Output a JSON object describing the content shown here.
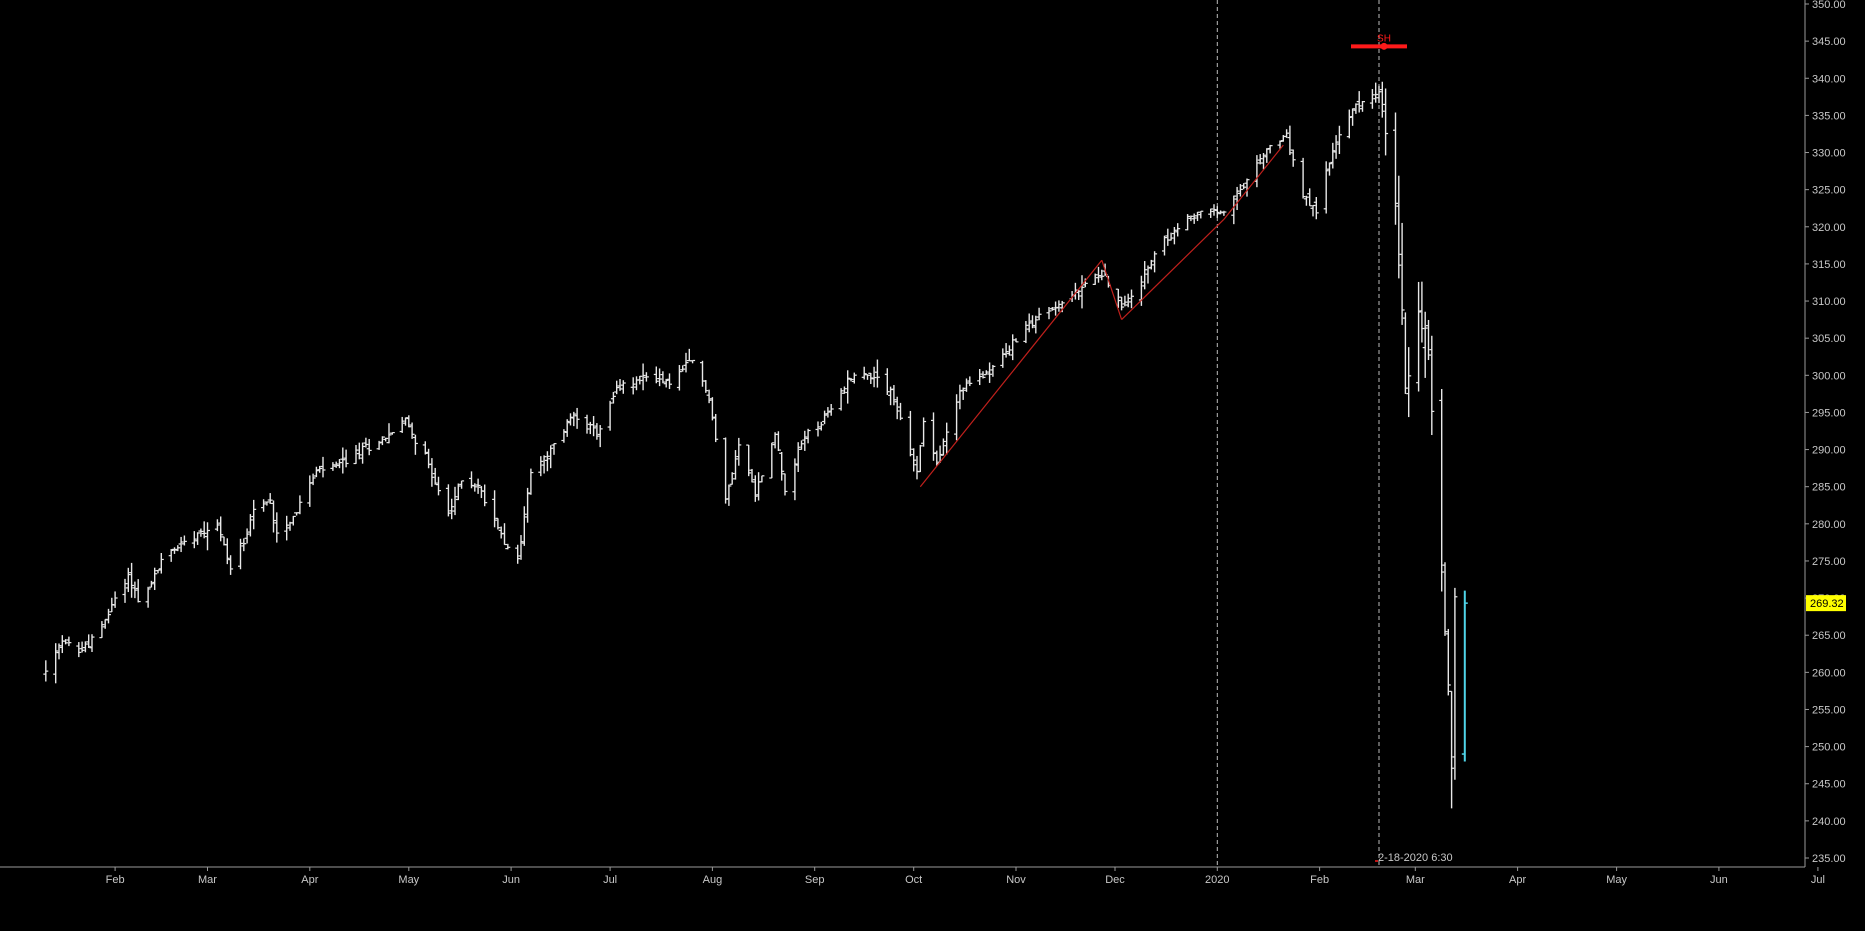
{
  "chart_data": {
    "type": "ohlc",
    "title": "",
    "xlabel": "",
    "ylabel": "",
    "ylim": [
      235,
      350
    ],
    "y_ticks": [
      "235.00",
      "240.00",
      "245.00",
      "250.00",
      "255.00",
      "260.00",
      "265.00",
      "270.00",
      "275.00",
      "280.00",
      "285.00",
      "290.00",
      "295.00",
      "300.00",
      "305.00",
      "310.00",
      "315.00",
      "320.00",
      "325.00",
      "330.00",
      "335.00",
      "340.00",
      "345.00",
      "350.00"
    ],
    "x_month_labels": [
      {
        "label": "Feb",
        "date": "2019-02-01"
      },
      {
        "label": "Mar",
        "date": "2019-03-01"
      },
      {
        "label": "Apr",
        "date": "2019-04-01"
      },
      {
        "label": "May",
        "date": "2019-05-01"
      },
      {
        "label": "Jun",
        "date": "2019-06-01"
      },
      {
        "label": "Jul",
        "date": "2019-07-01"
      },
      {
        "label": "Aug",
        "date": "2019-08-01"
      },
      {
        "label": "Sep",
        "date": "2019-09-01"
      },
      {
        "label": "Oct",
        "date": "2019-10-01"
      },
      {
        "label": "Nov",
        "date": "2019-11-01"
      },
      {
        "label": "Dec",
        "date": "2019-12-01"
      },
      {
        "label": "2020",
        "date": "2020-01-01"
      },
      {
        "label": "Feb",
        "date": "2020-02-01"
      },
      {
        "label": "Mar",
        "date": "2020-03-01"
      },
      {
        "label": "Apr",
        "date": "2020-04-01"
      },
      {
        "label": "May",
        "date": "2020-05-01"
      },
      {
        "label": "Jun",
        "date": "2020-06-01"
      },
      {
        "label": "Jul",
        "date": "2020-07-01"
      }
    ],
    "price_path": [
      [
        "2019-01-11",
        260
      ],
      [
        "2019-01-16",
        264
      ],
      [
        "2019-01-22",
        263
      ],
      [
        "2019-01-28",
        266
      ],
      [
        "2019-02-01",
        270
      ],
      [
        "2019-02-05",
        273
      ],
      [
        "2019-02-08",
        270
      ],
      [
        "2019-02-11",
        271
      ],
      [
        "2019-02-15",
        275
      ],
      [
        "2019-02-20",
        277
      ],
      [
        "2019-02-26",
        279
      ],
      [
        "2019-03-04",
        280
      ],
      [
        "2019-03-08",
        274
      ],
      [
        "2019-03-12",
        278
      ],
      [
        "2019-03-15",
        282
      ],
      [
        "2019-03-20",
        283
      ],
      [
        "2019-03-22",
        279
      ],
      [
        "2019-03-27",
        281
      ],
      [
        "2019-04-03",
        287
      ],
      [
        "2019-04-10",
        288
      ],
      [
        "2019-04-17",
        290
      ],
      [
        "2019-04-25",
        292
      ],
      [
        "2019-04-30",
        294
      ],
      [
        "2019-05-07",
        288
      ],
      [
        "2019-05-13",
        281
      ],
      [
        "2019-05-17",
        286
      ],
      [
        "2019-05-22",
        285
      ],
      [
        "2019-05-31",
        277
      ],
      [
        "2019-06-03",
        275
      ],
      [
        "2019-06-07",
        287
      ],
      [
        "2019-06-12",
        289
      ],
      [
        "2019-06-20",
        295
      ],
      [
        "2019-06-27",
        292
      ],
      [
        "2019-07-03",
        298
      ],
      [
        "2019-07-12",
        300
      ],
      [
        "2019-07-19",
        299
      ],
      [
        "2019-07-26",
        302
      ],
      [
        "2019-07-31",
        297
      ],
      [
        "2019-08-05",
        283
      ],
      [
        "2019-08-09",
        291
      ],
      [
        "2019-08-14",
        284
      ],
      [
        "2019-08-20",
        292
      ],
      [
        "2019-08-23",
        285
      ],
      [
        "2019-08-29",
        292
      ],
      [
        "2019-09-04",
        294
      ],
      [
        "2019-09-12",
        300
      ],
      [
        "2019-09-19",
        300
      ],
      [
        "2019-09-24",
        298
      ],
      [
        "2019-10-02",
        287
      ],
      [
        "2019-10-04",
        294
      ],
      [
        "2019-10-08",
        288
      ],
      [
        "2019-10-15",
        298
      ],
      [
        "2019-10-22",
        300
      ],
      [
        "2019-10-29",
        303
      ],
      [
        "2019-11-05",
        307
      ],
      [
        "2019-11-12",
        309
      ],
      [
        "2019-11-19",
        311
      ],
      [
        "2019-11-27",
        314
      ],
      [
        "2019-12-03",
        309
      ],
      [
        "2019-12-09",
        313
      ],
      [
        "2019-12-16",
        318
      ],
      [
        "2019-12-23",
        321
      ],
      [
        "2019-12-27",
        322
      ],
      [
        "2020-01-03",
        322
      ],
      [
        "2020-01-10",
        326
      ],
      [
        "2020-01-17",
        331
      ],
      [
        "2020-01-22",
        332
      ],
      [
        "2020-01-27",
        324
      ],
      [
        "2020-01-31",
        322
      ],
      [
        "2020-02-04",
        329
      ],
      [
        "2020-02-10",
        335
      ],
      [
        "2020-02-14",
        337
      ],
      [
        "2020-02-19",
        338
      ],
      [
        "2020-02-24",
        324
      ],
      [
        "2020-02-27",
        299
      ],
      [
        "2020-03-02",
        309
      ],
      [
        "2020-03-05",
        303
      ],
      [
        "2020-03-09",
        274
      ],
      [
        "2020-03-12",
        249
      ],
      [
        "2020-03-13",
        269
      ]
    ],
    "last_bar": {
      "date": "2020-03-16",
      "open": 249,
      "high": 271,
      "low": 248,
      "close": 269.32,
      "color": "#4fd4e8"
    },
    "trendlines": [
      {
        "from": [
          "2019-10-03",
          285
        ],
        "to": [
          "2019-11-27",
          315.5
        ],
        "color": "#c0201c"
      },
      {
        "from": [
          "2019-11-27",
          315.5
        ],
        "to": [
          "2019-12-03",
          307.5
        ],
        "color": "#c0201c"
      },
      {
        "from": [
          "2019-12-03",
          307.5
        ],
        "to": [
          "2020-01-03",
          321
        ],
        "color": "#c0201c"
      },
      {
        "from": [
          "2020-01-03",
          321
        ],
        "to": [
          "2020-01-21",
          331
        ],
        "color": "#c0201c"
      }
    ],
    "vertical_markers": [
      {
        "date": "2020-01-01"
      },
      {
        "date": "2020-02-19"
      }
    ],
    "peak_marker": {
      "date": "2020-02-19",
      "value": 344.3,
      "label": "SH",
      "color": "#ff1a1a"
    },
    "cursor_label": {
      "date": "2020-02-19",
      "text": "2-18-2020 6:30"
    },
    "last_price_label": {
      "text": "269.32",
      "value": 269.32,
      "bg": "#ffff00",
      "fg": "#000000"
    },
    "colors": {
      "background": "#000000",
      "bars": "#e8e8e8",
      "axis": "#9a9a9a",
      "grid": "none"
    },
    "grid": false,
    "legend": "none"
  }
}
